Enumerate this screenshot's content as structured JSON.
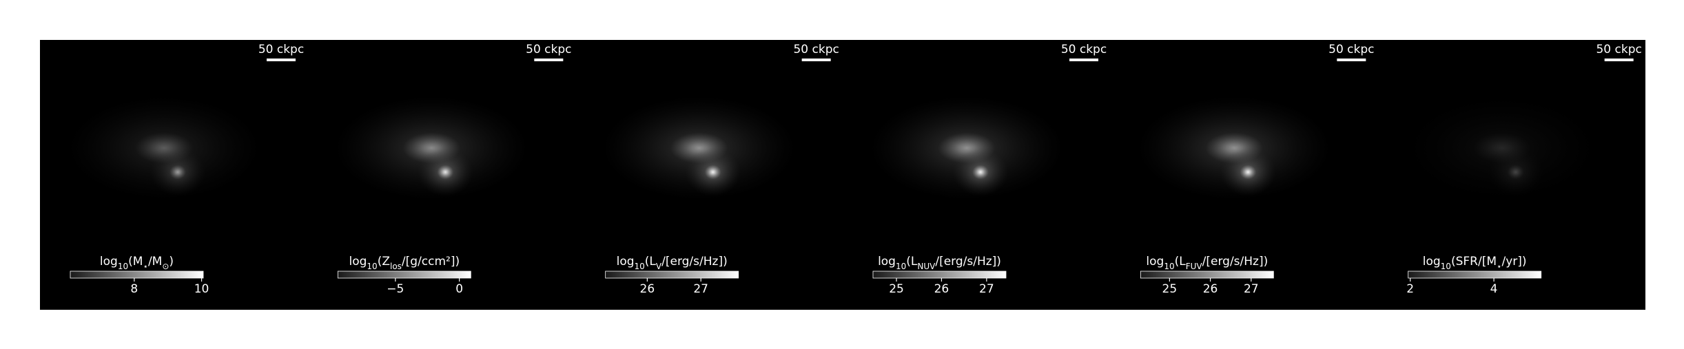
{
  "chart_data": [
    {
      "type": "image",
      "scale_bar_label": "50 ckpc",
      "colorbar": {
        "label_parts": [
          "log",
          "10",
          "(M",
          "⋆",
          "/M",
          "⊙",
          ")"
        ],
        "clim": [
          6.1,
          10.05
        ],
        "ticks": [
          8,
          10
        ],
        "cmap": "gray"
      }
    },
    {
      "type": "image",
      "scale_bar_label": "50 ckpc",
      "colorbar": {
        "label_parts": [
          "log",
          "10",
          "(Z",
          "los",
          "/[g/ccm²])"
        ],
        "clim": [
          -9.5,
          0.9
        ],
        "ticks": [
          {
            "value": -5,
            "label": "−5"
          },
          0
        ],
        "cmap": "gray"
      }
    },
    {
      "type": "image",
      "scale_bar_label": "50 ckpc",
      "colorbar": {
        "label_parts": [
          "log",
          "10",
          "(L",
          "V",
          "/[erg/s/Hz])"
        ],
        "clim": [
          25.22,
          27.7
        ],
        "ticks": [
          26,
          27
        ],
        "cmap": "gray"
      }
    },
    {
      "type": "image",
      "scale_bar_label": "50 ckpc",
      "colorbar": {
        "label_parts": [
          "log",
          "10",
          "(L",
          "NUV",
          "/[erg/s/Hz])"
        ],
        "clim": [
          24.48,
          27.43
        ],
        "ticks": [
          25,
          26,
          27
        ],
        "cmap": "gray"
      }
    },
    {
      "type": "image",
      "scale_bar_label": "50 ckpc",
      "colorbar": {
        "label_parts": [
          "log",
          "10",
          "(L",
          "FUV",
          "/[erg/s/Hz])"
        ],
        "clim": [
          24.29,
          27.55
        ],
        "ticks": [
          25,
          26,
          27
        ],
        "cmap": "gray"
      }
    },
    {
      "type": "image",
      "scale_bar_label": "50 ckpc",
      "colorbar": {
        "label_parts": [
          "log",
          "10",
          "(SFR/[M",
          "⋆",
          "/yr])"
        ],
        "clim": [
          1.95,
          5.13
        ],
        "ticks": [
          2,
          4
        ],
        "cmap": "gray"
      }
    }
  ]
}
